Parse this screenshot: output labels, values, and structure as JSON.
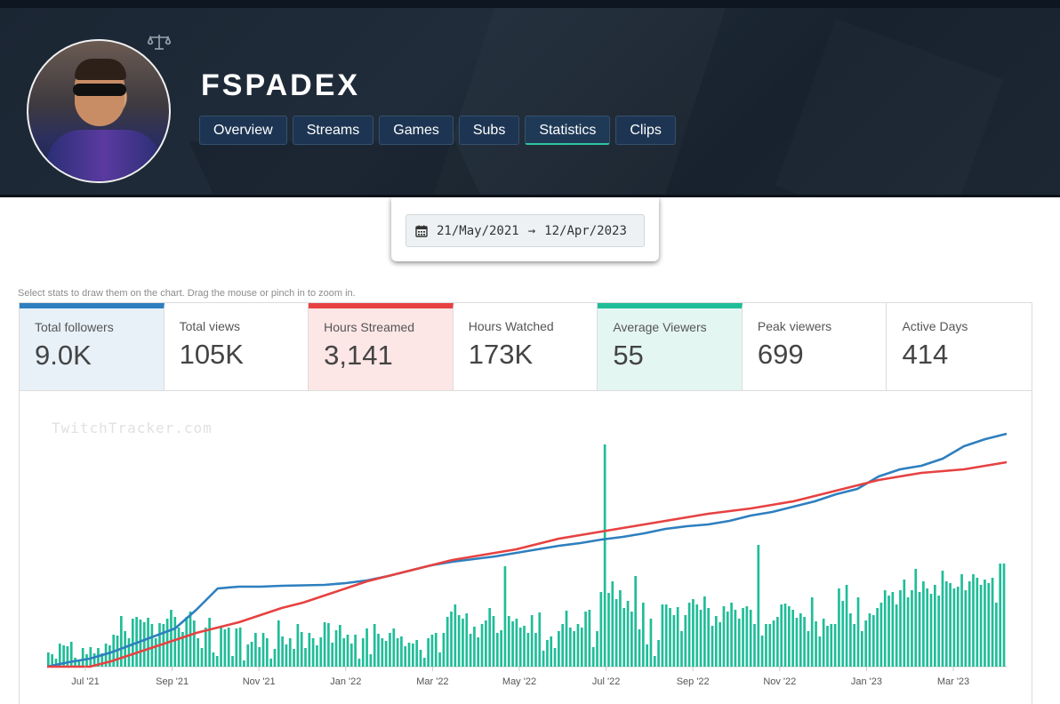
{
  "channel": {
    "name": "FSPADEX"
  },
  "tabs": [
    {
      "label": "Overview",
      "active": false
    },
    {
      "label": "Streams",
      "active": false
    },
    {
      "label": "Games",
      "active": false
    },
    {
      "label": "Subs",
      "active": false
    },
    {
      "label": "Statistics",
      "active": true
    },
    {
      "label": "Clips",
      "active": false
    }
  ],
  "date_range": {
    "start": "21/May/2021",
    "arrow": "→",
    "end": "12/Apr/2023"
  },
  "hint": "Select stats to draw them on the chart. Drag the mouse or pinch in to zoom in.",
  "stats": [
    {
      "label": "Total followers",
      "value": "9.0K",
      "selected": "blue"
    },
    {
      "label": "Total views",
      "value": "105K",
      "selected": ""
    },
    {
      "label": "Hours Streamed",
      "value": "3,141",
      "selected": "red"
    },
    {
      "label": "Hours Watched",
      "value": "173K",
      "selected": ""
    },
    {
      "label": "Average Viewers",
      "value": "55",
      "selected": "green"
    },
    {
      "label": "Peak viewers",
      "value": "699",
      "selected": ""
    },
    {
      "label": "Active Days",
      "value": "414",
      "selected": ""
    }
  ],
  "watermark": "TwitchTracker.com",
  "colors": {
    "followers": "#2e7fbf",
    "hours_streamed": "#e74141",
    "avg_viewers": "#1fbd98"
  },
  "chart_data": {
    "type": "bar",
    "x_ticks": [
      "Jul '21",
      "Sep '21",
      "Nov '21",
      "Jan '22",
      "Mar '22",
      "May '22",
      "Jul '22",
      "Sep '22",
      "Nov '22",
      "Jan '23",
      "Mar '23"
    ],
    "series": [
      {
        "name": "Average Viewers",
        "type": "bar"
      },
      {
        "name": "Total followers",
        "type": "line",
        "values": [
          0,
          5,
          9,
          16,
          25,
          34,
          43,
          64,
          88,
          90,
          90,
          91,
          91.5,
          92,
          94,
          97,
          102,
          108,
          114,
          118,
          121,
          124,
          128,
          132,
          136,
          139,
          143,
          146,
          150,
          155,
          158,
          160,
          164,
          170,
          174,
          180,
          186,
          194,
          200,
          214,
          222,
          226,
          234,
          248,
          256,
          262
        ]
      },
      {
        "name": "Hours Streamed",
        "type": "line",
        "values": [
          0,
          0,
          0,
          6,
          14,
          22,
          30,
          38,
          44,
          50,
          58,
          66,
          72,
          80,
          88,
          96,
          102,
          108,
          114,
          120,
          124,
          128,
          132,
          138,
          144,
          148,
          152,
          156,
          160,
          164,
          168,
          172,
          175,
          178,
          182,
          186,
          192,
          198,
          204,
          210,
          214,
          218,
          220,
          222,
          226,
          230
        ]
      }
    ],
    "bars": [
      16,
      14,
      9,
      26,
      24,
      23,
      28,
      10,
      8,
      21,
      14,
      22,
      15,
      21,
      15,
      26,
      24,
      36,
      35,
      57,
      40,
      32,
      54,
      56,
      53,
      50,
      55,
      48,
      32,
      49,
      48,
      54,
      64,
      56,
      44,
      39,
      56,
      62,
      52,
      32,
      21,
      44,
      55,
      16,
      12,
      46,
      42,
      44,
      12,
      43,
      44,
      7,
      25,
      28,
      38,
      22,
      38,
      32,
      9,
      20,
      52,
      34,
      25,
      32,
      20,
      48,
      39,
      21,
      38,
      32,
      24,
      33,
      50,
      49,
      27,
      41,
      47,
      32,
      36,
      26,
      36,
      9,
      32,
      43,
      14,
      48,
      37,
      32,
      29,
      38,
      43,
      32,
      34,
      23,
      27,
      26,
      30,
      19,
      10,
      32,
      36,
      38,
      16,
      38,
      56,
      62,
      70,
      58,
      54,
      60,
      37,
      45,
      33,
      48,
      52,
      66,
      57,
      38,
      41,
      113,
      57,
      51,
      54,
      44,
      46,
      38,
      58,
      38,
      61,
      18,
      30,
      34,
      21,
      40,
      48,
      63,
      44,
      40,
      48,
      44,
      62,
      64,
      22,
      40,
      84,
      250,
      83,
      96,
      76,
      86,
      66,
      74,
      62,
      102,
      42,
      72,
      25,
      54,
      12,
      30,
      70,
      70,
      66,
      58,
      67,
      40,
      58,
      72,
      76,
      70,
      64,
      79,
      66,
      46,
      57,
      50,
      68,
      62,
      72,
      64,
      54,
      66,
      68,
      64,
      48,
      137,
      35,
      48,
      48,
      52,
      56,
      70,
      71,
      68,
      64,
      55,
      60,
      56,
      40,
      78,
      51,
      34,
      54,
      46,
      48,
      48,
      88,
      74,
      92,
      60,
      48,
      78,
      40,
      52,
      60,
      58,
      66,
      72,
      86,
      80,
      84,
      70,
      86,
      98,
      78,
      86,
      110,
      84,
      96,
      88,
      82,
      92,
      80,
      108,
      96,
      94,
      88,
      90,
      104,
      86,
      96,
      104,
      100,
      92,
      98,
      94,
      100,
      72,
      116,
      116
    ],
    "ylim": [
      0,
      262
    ]
  }
}
